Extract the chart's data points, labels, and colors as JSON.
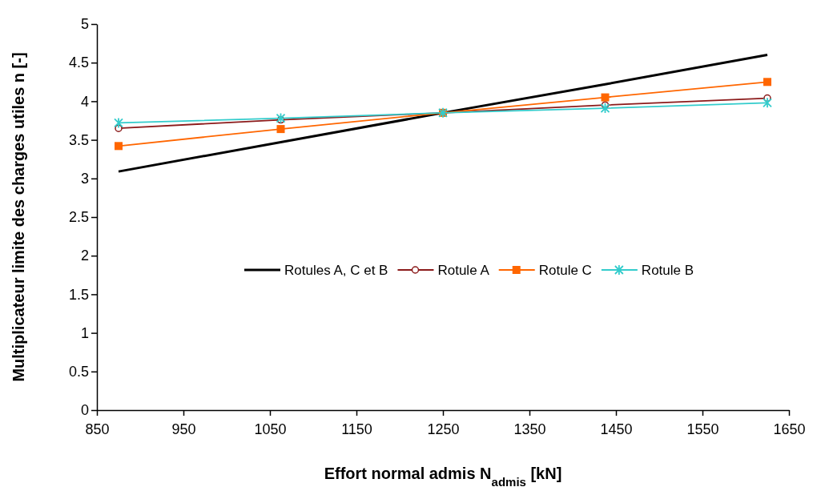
{
  "chart_data": {
    "type": "line",
    "xlabel": "Effort normal admis N$_{admis}$ [kN]",
    "ylabel": "Multiplicateur limite des charges utiles n [-]",
    "x": [
      875,
      1062.5,
      1250,
      1437.5,
      1625
    ],
    "xlim": [
      850,
      1650
    ],
    "xticks": [
      850,
      950,
      1050,
      1150,
      1250,
      1350,
      1450,
      1550,
      1650
    ],
    "ylim": [
      0,
      5
    ],
    "yticks": [
      0,
      0.5,
      1,
      1.5,
      2,
      2.5,
      3,
      3.5,
      4,
      4.5,
      5
    ],
    "grid": false,
    "legend": "right",
    "series": [
      {
        "name": "Rotules A, C et B",
        "color": "#000000",
        "marker": "none",
        "values": [
          3.09,
          3.47,
          3.85,
          4.22,
          4.6
        ]
      },
      {
        "name": "Rotule A",
        "color": "#8b1a1a",
        "marker": "circle",
        "values": [
          3.65,
          3.76,
          3.85,
          3.95,
          4.04
        ]
      },
      {
        "name": "Rotule C",
        "color": "#ff6600",
        "marker": "square",
        "values": [
          3.42,
          3.64,
          3.85,
          4.05,
          4.25
        ]
      },
      {
        "name": "Rotule B",
        "color": "#33cccc",
        "marker": "cross",
        "values": [
          3.72,
          3.78,
          3.85,
          3.91,
          3.98
        ]
      }
    ]
  }
}
